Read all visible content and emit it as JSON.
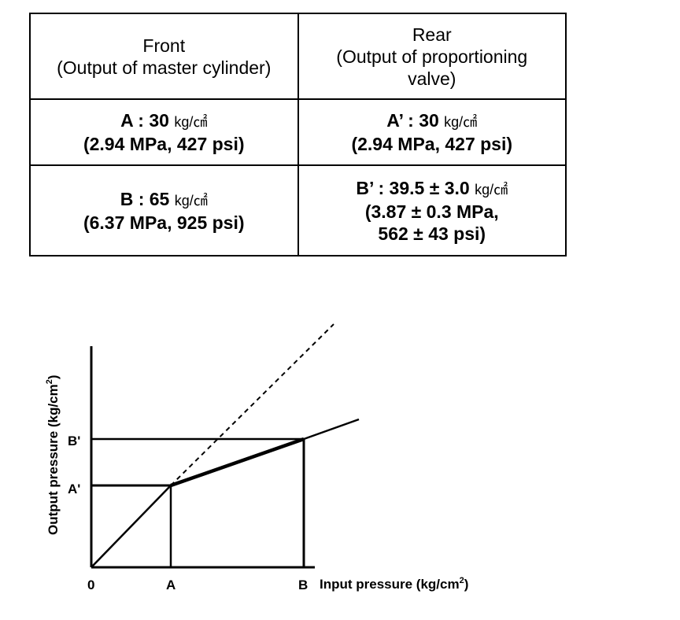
{
  "table": {
    "headers": [
      {
        "line1": "Front",
        "line2": "(Output of master cylinder)"
      },
      {
        "line1": "Rear",
        "line2": "(Output of proportioning",
        "line3": "valve)"
      }
    ],
    "rows": [
      {
        "front": {
          "prefix": "A : 30",
          "unit": "kg/㎠",
          "line2": "(2.94 MPa, 427 psi)"
        },
        "rear": {
          "prefix": "A’ : 30",
          "unit": "kg/㎠",
          "line2": "(2.94 MPa, 427 psi)"
        }
      },
      {
        "front": {
          "prefix": "B : 65",
          "unit": "kg/㎠",
          "line2": "(6.37 MPa, 925 psi)"
        },
        "rear": {
          "prefix": "B’ : 39.5 ± 3.0",
          "unit": "kg/㎠",
          "line2": "(3.87 ± 0.3 MPa,",
          "line3": "562 ± 43 psi)"
        }
      }
    ]
  },
  "graph": {
    "x_axis_label": "Input pressure (kg/cm",
    "y_axis_label": "Output pressure (kg/cm",
    "superscript": "2",
    "closing": ")",
    "origin_label": "0",
    "x_ticks": [
      "A",
      "B"
    ],
    "y_ticks": [
      "A'",
      "B'"
    ]
  }
}
